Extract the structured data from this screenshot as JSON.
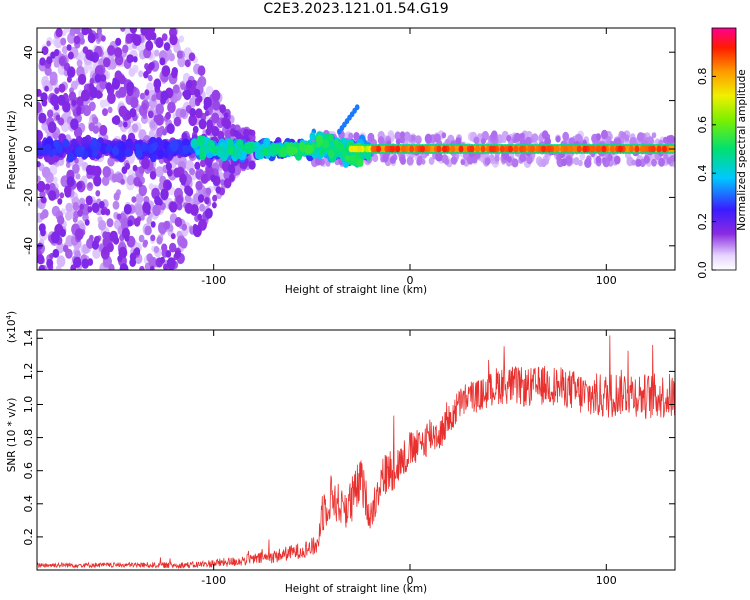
{
  "title": "C2E3.2023.121.01.54.G19",
  "chart_data": [
    {
      "type": "heatmap",
      "xlabel": "Height of straight line (km)",
      "ylabel": "Frequency (Hz)",
      "xlim": [
        -190,
        135
      ],
      "ylim": [
        -50,
        50
      ],
      "xticks": [
        -100,
        0,
        100
      ],
      "yticks": [
        -40,
        -20,
        0,
        20,
        40
      ],
      "colorbar": {
        "label": "Normalized spectral amplitude",
        "range": [
          0.0,
          1.0
        ],
        "ticks": [
          "0.0",
          "0.2",
          "0.4",
          "0.6",
          "0.8"
        ],
        "colormap": "rainbow (white-violet → blue → cyan → green → yellow → orange → red → magenta)"
      },
      "summary": {
        "carrier_line_frequency_hz": 0,
        "carrier_amplitude_above_minus_20km": 0.8,
        "scatter_spread_hz_below_minus_120km": [
          -50,
          50
        ],
        "doppler_feature_near_minus_30km_hz": 18
      }
    },
    {
      "type": "line",
      "xlabel": "Height of straight line (km)",
      "ylabel": "SNR (10 * v/v)",
      "yscale_label": "(x10^4)",
      "xlim": [
        -190,
        135
      ],
      "ylim": [
        0,
        1.45
      ],
      "xticks": [
        -100,
        0,
        100
      ],
      "yticks": [
        0.2,
        0.4,
        0.6,
        0.8,
        1.0,
        1.2,
        1.4
      ],
      "series": [
        {
          "color": "#e8312f",
          "x": [
            -190,
            -150,
            -110,
            -90,
            -70,
            -55,
            -47,
            -45,
            -40,
            -35,
            -30,
            -25,
            -20,
            -15,
            -10,
            -5,
            0,
            5,
            10,
            15,
            20,
            25,
            30,
            35,
            40,
            45,
            50,
            60,
            70,
            80,
            90,
            100,
            110,
            120,
            130,
            135
          ],
          "y": [
            0.03,
            0.03,
            0.03,
            0.05,
            0.08,
            0.12,
            0.15,
            0.35,
            0.45,
            0.38,
            0.4,
            0.55,
            0.32,
            0.55,
            0.6,
            0.65,
            0.72,
            0.75,
            0.82,
            0.82,
            0.9,
            1.0,
            1.05,
            1.05,
            1.08,
            1.12,
            1.12,
            1.1,
            1.12,
            1.1,
            1.05,
            1.05,
            1.08,
            1.05,
            1.05,
            1.05
          ],
          "noise_amplitude": [
            0.015,
            0.015,
            0.02,
            0.03,
            0.04,
            0.05,
            0.06,
            0.14,
            0.14,
            0.12,
            0.16,
            0.14,
            0.1,
            0.13,
            0.14,
            0.12,
            0.12,
            0.1,
            0.12,
            0.1,
            0.1,
            0.1,
            0.1,
            0.1,
            0.1,
            0.12,
            0.12,
            0.12,
            0.12,
            0.12,
            0.14,
            0.14,
            0.14,
            0.14,
            0.14,
            0.14
          ]
        }
      ]
    }
  ]
}
